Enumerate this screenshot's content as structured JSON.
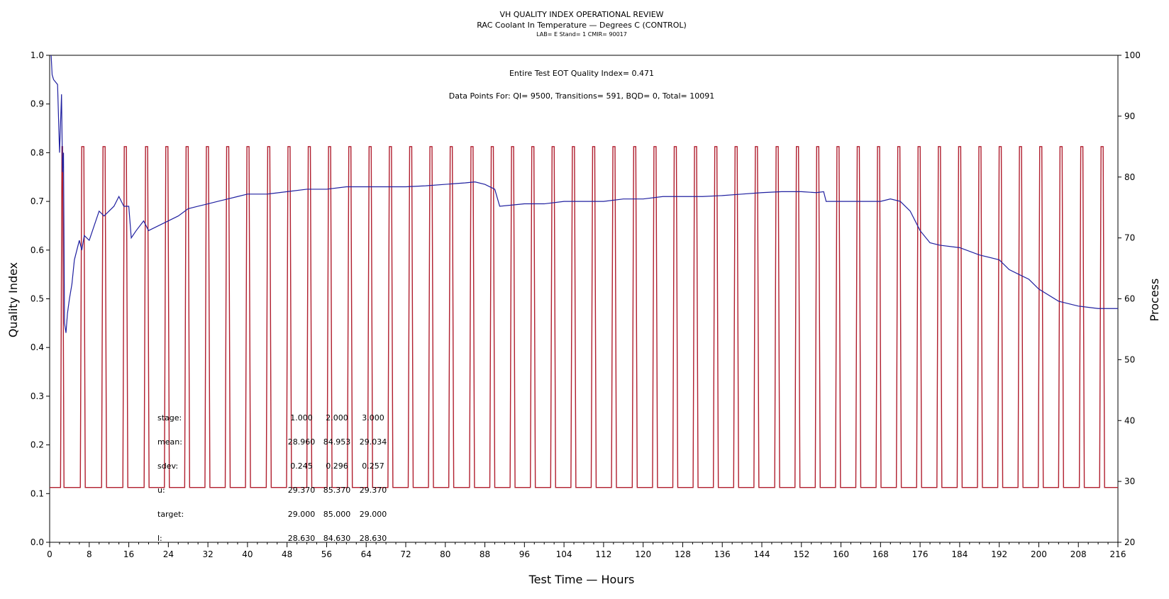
{
  "chart_data": {
    "type": "line",
    "title": "VH QUALITY INDEX OPERATIONAL REVIEW",
    "subtitle": "RAC Coolant In Temperature — Degrees C (CONTROL)",
    "subtitle2": "LAB= E Stand= 1 CMIR= 90017",
    "annotations": [
      "Entire Test EOT Quality Index=   0.471",
      "Data Points For: QI=  9500, Transitions=    591, BQD=      0, Total= 10091"
    ],
    "xlabel": "Test Time — Hours",
    "ylabel": "Quality Index",
    "y2label": "Process",
    "xlim": [
      0,
      216
    ],
    "ylim": [
      0,
      1.0
    ],
    "y2lim": [
      20,
      100
    ],
    "x_ticks": [
      "0",
      "8",
      "16",
      "24",
      "32",
      "40",
      "48",
      "56",
      "64",
      "72",
      "80",
      "88",
      "96",
      "104",
      "112",
      "120",
      "128",
      "136",
      "144",
      "152",
      "160",
      "168",
      "176",
      "184",
      "192",
      "200",
      "208",
      "216"
    ],
    "y_ticks": [
      "0.0",
      "0.1",
      "0.2",
      "0.3",
      "0.4",
      "0.5",
      "0.6",
      "0.7",
      "0.8",
      "0.9",
      "1.0"
    ],
    "y2_ticks": [
      "20",
      "30",
      "40",
      "50",
      "60",
      "70",
      "80",
      "90",
      "100"
    ],
    "colors": {
      "quality_index": "#2020a0",
      "process": "#b01e2e"
    },
    "series": [
      {
        "name": "Quality Index",
        "axis": "left",
        "x": [
          0.3,
          0.5,
          0.8,
          1.2,
          1.6,
          2.0,
          2.4,
          2.6,
          2.8,
          3.0,
          3.3,
          3.6,
          4.0,
          4.5,
          5.0,
          6.0,
          6.5,
          7.0,
          8.0,
          9.0,
          10.0,
          11.0,
          12.0,
          13.0,
          14.0,
          15.0,
          16.0,
          16.5,
          17.5,
          19.0,
          20.0,
          22.0,
          24.0,
          26.0,
          28.0,
          30.0,
          32.0,
          34.0,
          36.0,
          38.0,
          40.0,
          44.0,
          48.0,
          52.0,
          56.0,
          60.0,
          64.0,
          68.0,
          72.0,
          76.0,
          80.0,
          84.0,
          86.0,
          88.0,
          90.0,
          91.0,
          96.0,
          100.0,
          104.0,
          108.0,
          112.0,
          116.0,
          120.0,
          124.0,
          128.0,
          132.0,
          136.0,
          140.0,
          144.0,
          148.0,
          152.0,
          155.0,
          156.5,
          157.0,
          160.0,
          164.0,
          168.0,
          170.0,
          172.0,
          174.0,
          176.0,
          178.0,
          180.0,
          184.0,
          188.0,
          192.0,
          194.0,
          196.0,
          198.0,
          200.0,
          204.0,
          208.0,
          212.0,
          216.0
        ],
        "values": [
          1.0,
          0.96,
          0.95,
          0.945,
          0.94,
          0.8,
          0.92,
          0.76,
          0.8,
          0.45,
          0.43,
          0.47,
          0.5,
          0.53,
          0.58,
          0.62,
          0.6,
          0.63,
          0.62,
          0.65,
          0.68,
          0.67,
          0.68,
          0.69,
          0.71,
          0.69,
          0.69,
          0.625,
          0.64,
          0.66,
          0.64,
          0.65,
          0.66,
          0.67,
          0.685,
          0.69,
          0.695,
          0.7,
          0.705,
          0.71,
          0.715,
          0.715,
          0.72,
          0.725,
          0.725,
          0.73,
          0.73,
          0.73,
          0.73,
          0.732,
          0.735,
          0.738,
          0.74,
          0.735,
          0.725,
          0.69,
          0.695,
          0.695,
          0.7,
          0.7,
          0.7,
          0.705,
          0.705,
          0.71,
          0.71,
          0.71,
          0.712,
          0.715,
          0.718,
          0.72,
          0.72,
          0.718,
          0.72,
          0.7,
          0.7,
          0.7,
          0.7,
          0.705,
          0.7,
          0.68,
          0.64,
          0.615,
          0.61,
          0.605,
          0.59,
          0.58,
          0.56,
          0.55,
          0.54,
          0.52,
          0.495,
          0.485,
          0.48,
          0.48
        ]
      },
      {
        "name": "Process",
        "axis": "right",
        "baseline": 29.0,
        "high": 85.0,
        "pulses": [
          [
            2.2,
            2.9
          ],
          [
            6.2,
            7.2
          ],
          [
            10.5,
            11.5
          ],
          [
            14.8,
            15.8
          ],
          [
            19.1,
            20.1
          ],
          [
            23.2,
            24.2
          ],
          [
            27.3,
            28.3
          ],
          [
            31.4,
            32.4
          ],
          [
            35.5,
            36.5
          ],
          [
            39.6,
            40.6
          ],
          [
            43.8,
            44.8
          ],
          [
            47.9,
            48.9
          ],
          [
            52.0,
            53.0
          ],
          [
            56.1,
            57.1
          ],
          [
            60.2,
            61.2
          ],
          [
            64.3,
            65.3
          ],
          [
            68.4,
            69.4
          ],
          [
            72.5,
            73.5
          ],
          [
            76.6,
            77.6
          ],
          [
            80.7,
            81.7
          ],
          [
            84.9,
            85.9
          ],
          [
            89.0,
            90.0
          ],
          [
            93.1,
            94.1
          ],
          [
            97.2,
            98.2
          ],
          [
            101.3,
            102.3
          ],
          [
            105.4,
            106.4
          ],
          [
            109.5,
            110.5
          ],
          [
            113.6,
            114.6
          ],
          [
            117.8,
            118.8
          ],
          [
            121.9,
            122.9
          ],
          [
            126.0,
            127.0
          ],
          [
            130.1,
            131.1
          ],
          [
            134.2,
            135.2
          ],
          [
            138.3,
            139.3
          ],
          [
            142.4,
            143.4
          ],
          [
            146.6,
            147.6
          ],
          [
            150.7,
            151.7
          ],
          [
            154.8,
            155.8
          ],
          [
            158.9,
            159.9
          ],
          [
            163.0,
            164.0
          ],
          [
            167.1,
            168.1
          ],
          [
            171.2,
            172.2
          ],
          [
            175.3,
            176.3
          ],
          [
            179.4,
            180.4
          ],
          [
            183.5,
            184.5
          ],
          [
            187.6,
            188.6
          ],
          [
            191.7,
            192.7
          ],
          [
            195.8,
            196.8
          ],
          [
            199.9,
            200.9
          ],
          [
            204.0,
            205.0
          ],
          [
            208.2,
            209.2
          ],
          [
            212.3,
            213.3
          ]
        ]
      }
    ],
    "stats_table": {
      "rows": [
        {
          "label": "stage:",
          "values": [
            "1.000",
            "2.000",
            "3.000"
          ]
        },
        {
          "label": "mean:",
          "values": [
            "28.960",
            "84.953",
            "29.034"
          ]
        },
        {
          "label": "sdev:",
          "values": [
            "0.245",
            "0.296",
            "0.257"
          ]
        },
        {
          "label": "u:",
          "values": [
            "29.370",
            "85.370",
            "29.370"
          ]
        },
        {
          "label": "target:",
          "values": [
            "29.000",
            "85.000",
            "29.000"
          ]
        },
        {
          "label": "l:",
          "values": [
            "28.630",
            "84.630",
            "28.630"
          ]
        }
      ]
    }
  }
}
